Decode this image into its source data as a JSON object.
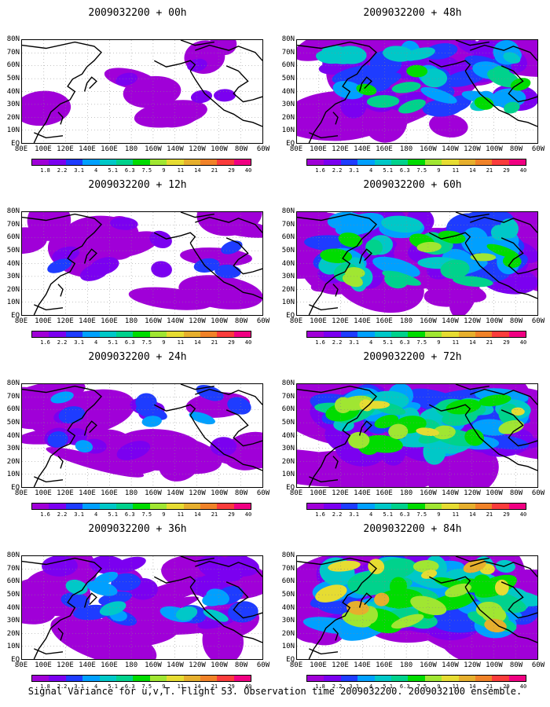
{
  "caption": "Signal Variance for u,v,T. Flight 53. Observation time 2009032200. 2009032100 ensemble.",
  "lat_labels": [
    "80N",
    "70N",
    "60N",
    "50N",
    "40N",
    "30N",
    "20N",
    "10N",
    "EQ"
  ],
  "lon_labels": [
    "80E",
    "100E",
    "120E",
    "140E",
    "160E",
    "180",
    "160W",
    "140W",
    "120W",
    "100W",
    "80W",
    "60W"
  ],
  "colorbar_labels": [
    "1.6",
    "2.2",
    "3.1",
    "4",
    "5.1",
    "6.3",
    "7.5",
    "9",
    "11",
    "14",
    "21",
    "29",
    "40"
  ],
  "colorbar_labels_alt": [
    "1.8",
    "2.2",
    "3.1",
    "4",
    "5.1",
    "6.3",
    "7.5",
    "9",
    "11",
    "14",
    "21",
    "29",
    "40"
  ],
  "colorbar_colors": [
    "#a000d8",
    "#7b00f0",
    "#1e3cff",
    "#00a0ff",
    "#00c8c8",
    "#00d28c",
    "#00dc00",
    "#a0e632",
    "#e6dc32",
    "#e6af2d",
    "#f08228",
    "#fa3c3c",
    "#f00082"
  ],
  "panels": [
    {
      "title": "2009032200 + 00h",
      "level": 0.05
    },
    {
      "title": "2009032200 + 48h",
      "level": 0.55
    },
    {
      "title": "2009032200 + 12h",
      "level": 0.2
    },
    {
      "title": "2009032200 + 60h",
      "level": 0.65
    },
    {
      "title": "2009032200 + 24h",
      "level": 0.3
    },
    {
      "title": "2009032200 + 72h",
      "level": 0.72
    },
    {
      "title": "2009032200 + 36h",
      "level": 0.4
    },
    {
      "title": "2009032200 + 84h",
      "level": 0.8
    }
  ]
}
